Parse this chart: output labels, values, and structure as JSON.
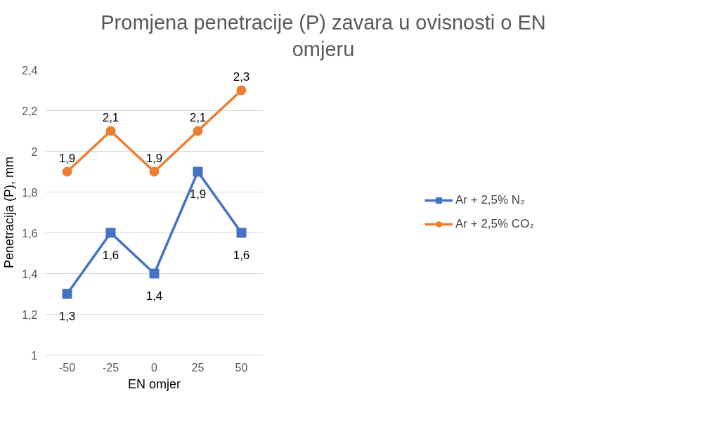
{
  "chart_data": {
    "type": "line",
    "title": "Promjena penetracije (P) zavara u ovisnosti o EN omjeru",
    "xlabel": "EN omjer",
    "ylabel": "Penetracija (P), mm",
    "categories": [
      "-50",
      "-25",
      "0",
      "25",
      "50"
    ],
    "ylim": [
      1,
      2.4
    ],
    "yticks": [
      1,
      {
        "value": 1.2,
        "label": "1,2"
      },
      {
        "value": 1.4,
        "label": "1,4"
      },
      {
        "value": 1.6,
        "label": "1,6"
      },
      {
        "value": 1.8,
        "label": "1,8"
      },
      2,
      {
        "value": 2.2,
        "label": "2,2"
      },
      {
        "value": 2.4,
        "label": "2,4"
      }
    ],
    "grid": "y",
    "legend": "right",
    "line_style": "solid",
    "series": [
      {
        "name": "Ar + 2,5% N₂",
        "color": "#4472c4",
        "marker": "square",
        "values": [
          1.3,
          1.6,
          1.4,
          1.9,
          1.6
        ],
        "value_labels": [
          "1,3",
          "1,6",
          "1,4",
          "1,9",
          "1,6"
        ]
      },
      {
        "name": "Ar + 2,5% CO₂",
        "color": "#ed7d31",
        "marker": "circle",
        "values": [
          1.9,
          2.1,
          1.9,
          2.1,
          2.3
        ],
        "value_labels": [
          "1,9",
          "2,1",
          "1,9",
          "2,1",
          "2,3"
        ]
      }
    ]
  }
}
